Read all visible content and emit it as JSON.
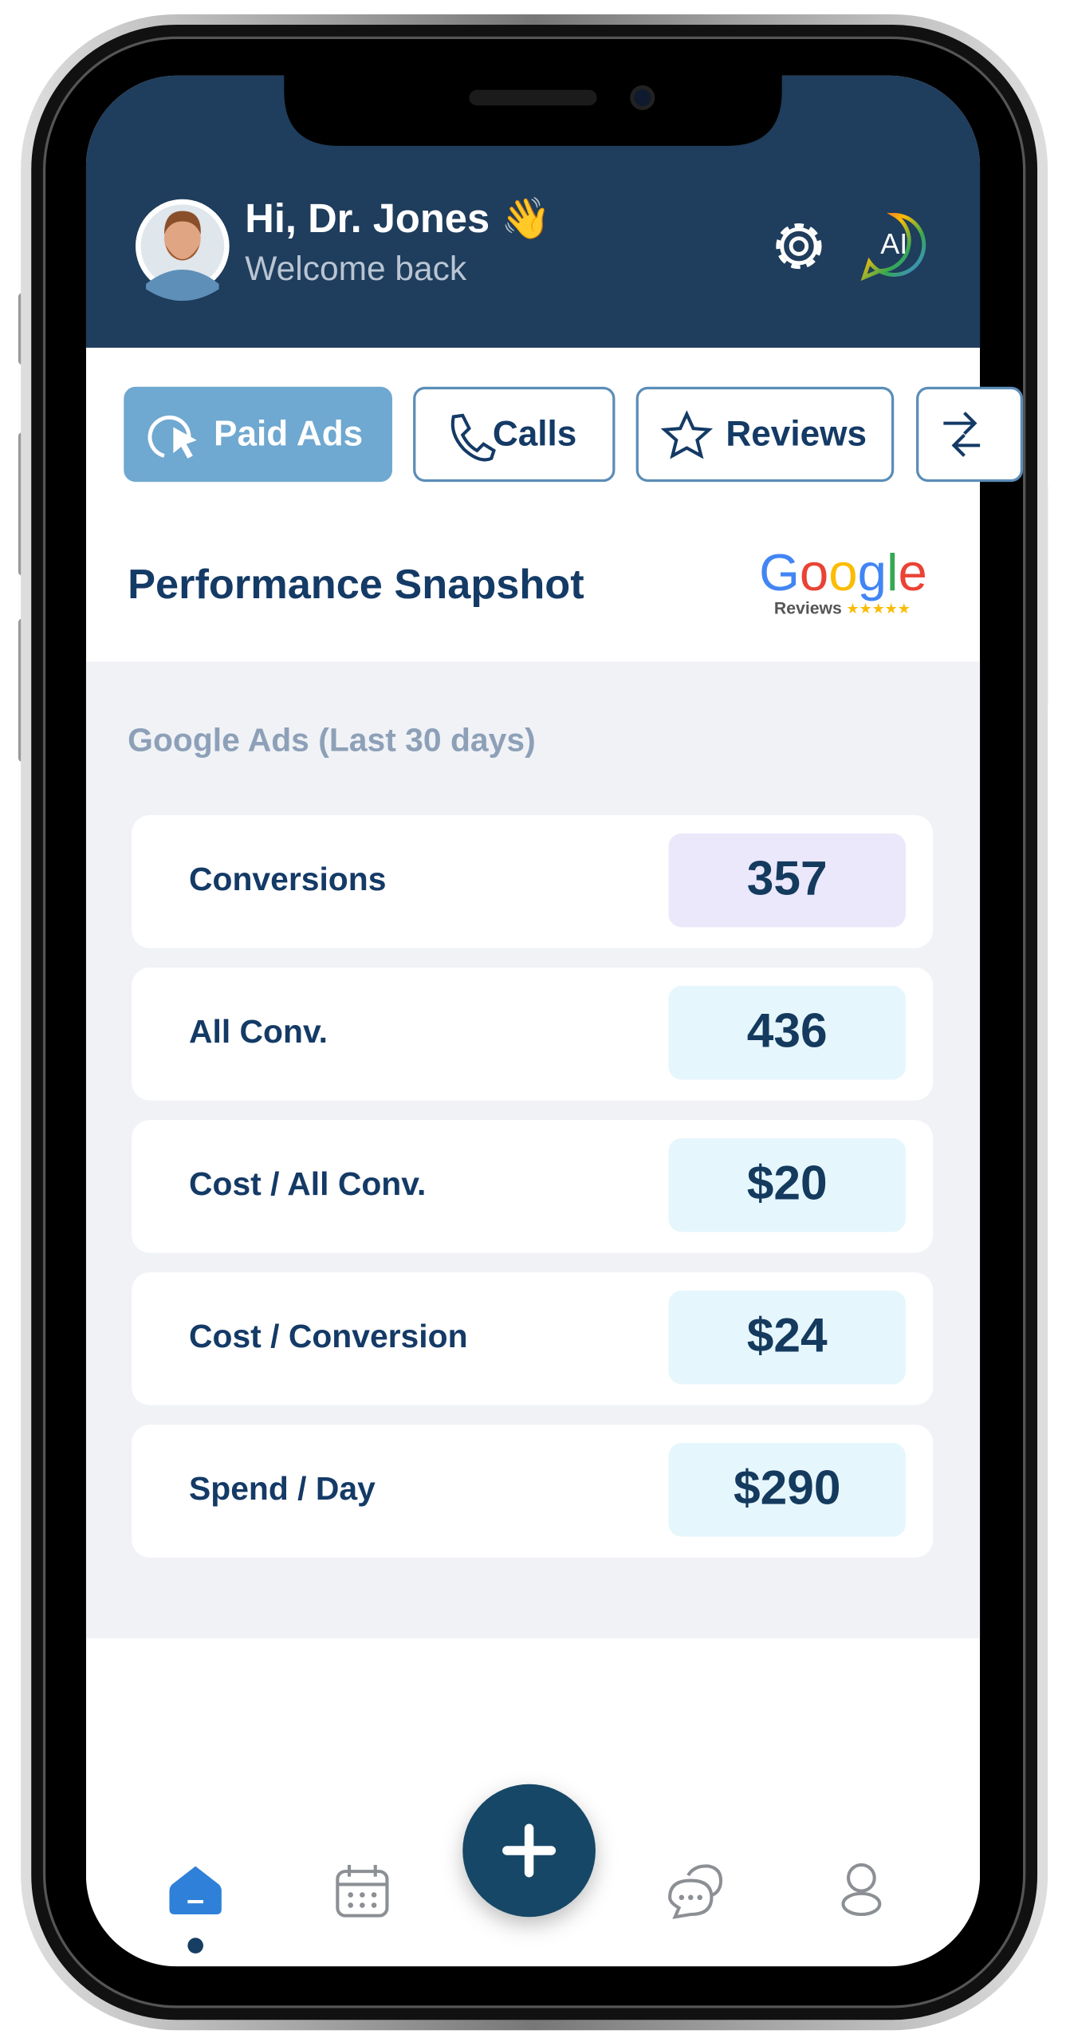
{
  "header": {
    "greeting": "Hi, Dr. Jones 👋",
    "subtitle": "Welcome back",
    "ai_label": "AI"
  },
  "tabs": [
    "Paid Ads",
    "Calls",
    "Reviews"
  ],
  "section": {
    "title": "Performance Snapshot",
    "logo_brand": "Google",
    "logo_caption": "Reviews"
  },
  "metrics": {
    "label": "Google Ads  (Last 30 days)",
    "rows": [
      {
        "label": "Conversions",
        "value": "357"
      },
      {
        "label": "All Conv.",
        "value": "436"
      },
      {
        "label": "Cost / All Conv.",
        "value": "$20"
      },
      {
        "label": "Cost / Conversion",
        "value": "$24"
      },
      {
        "label": "Spend / Day",
        "value": "$290"
      }
    ]
  }
}
